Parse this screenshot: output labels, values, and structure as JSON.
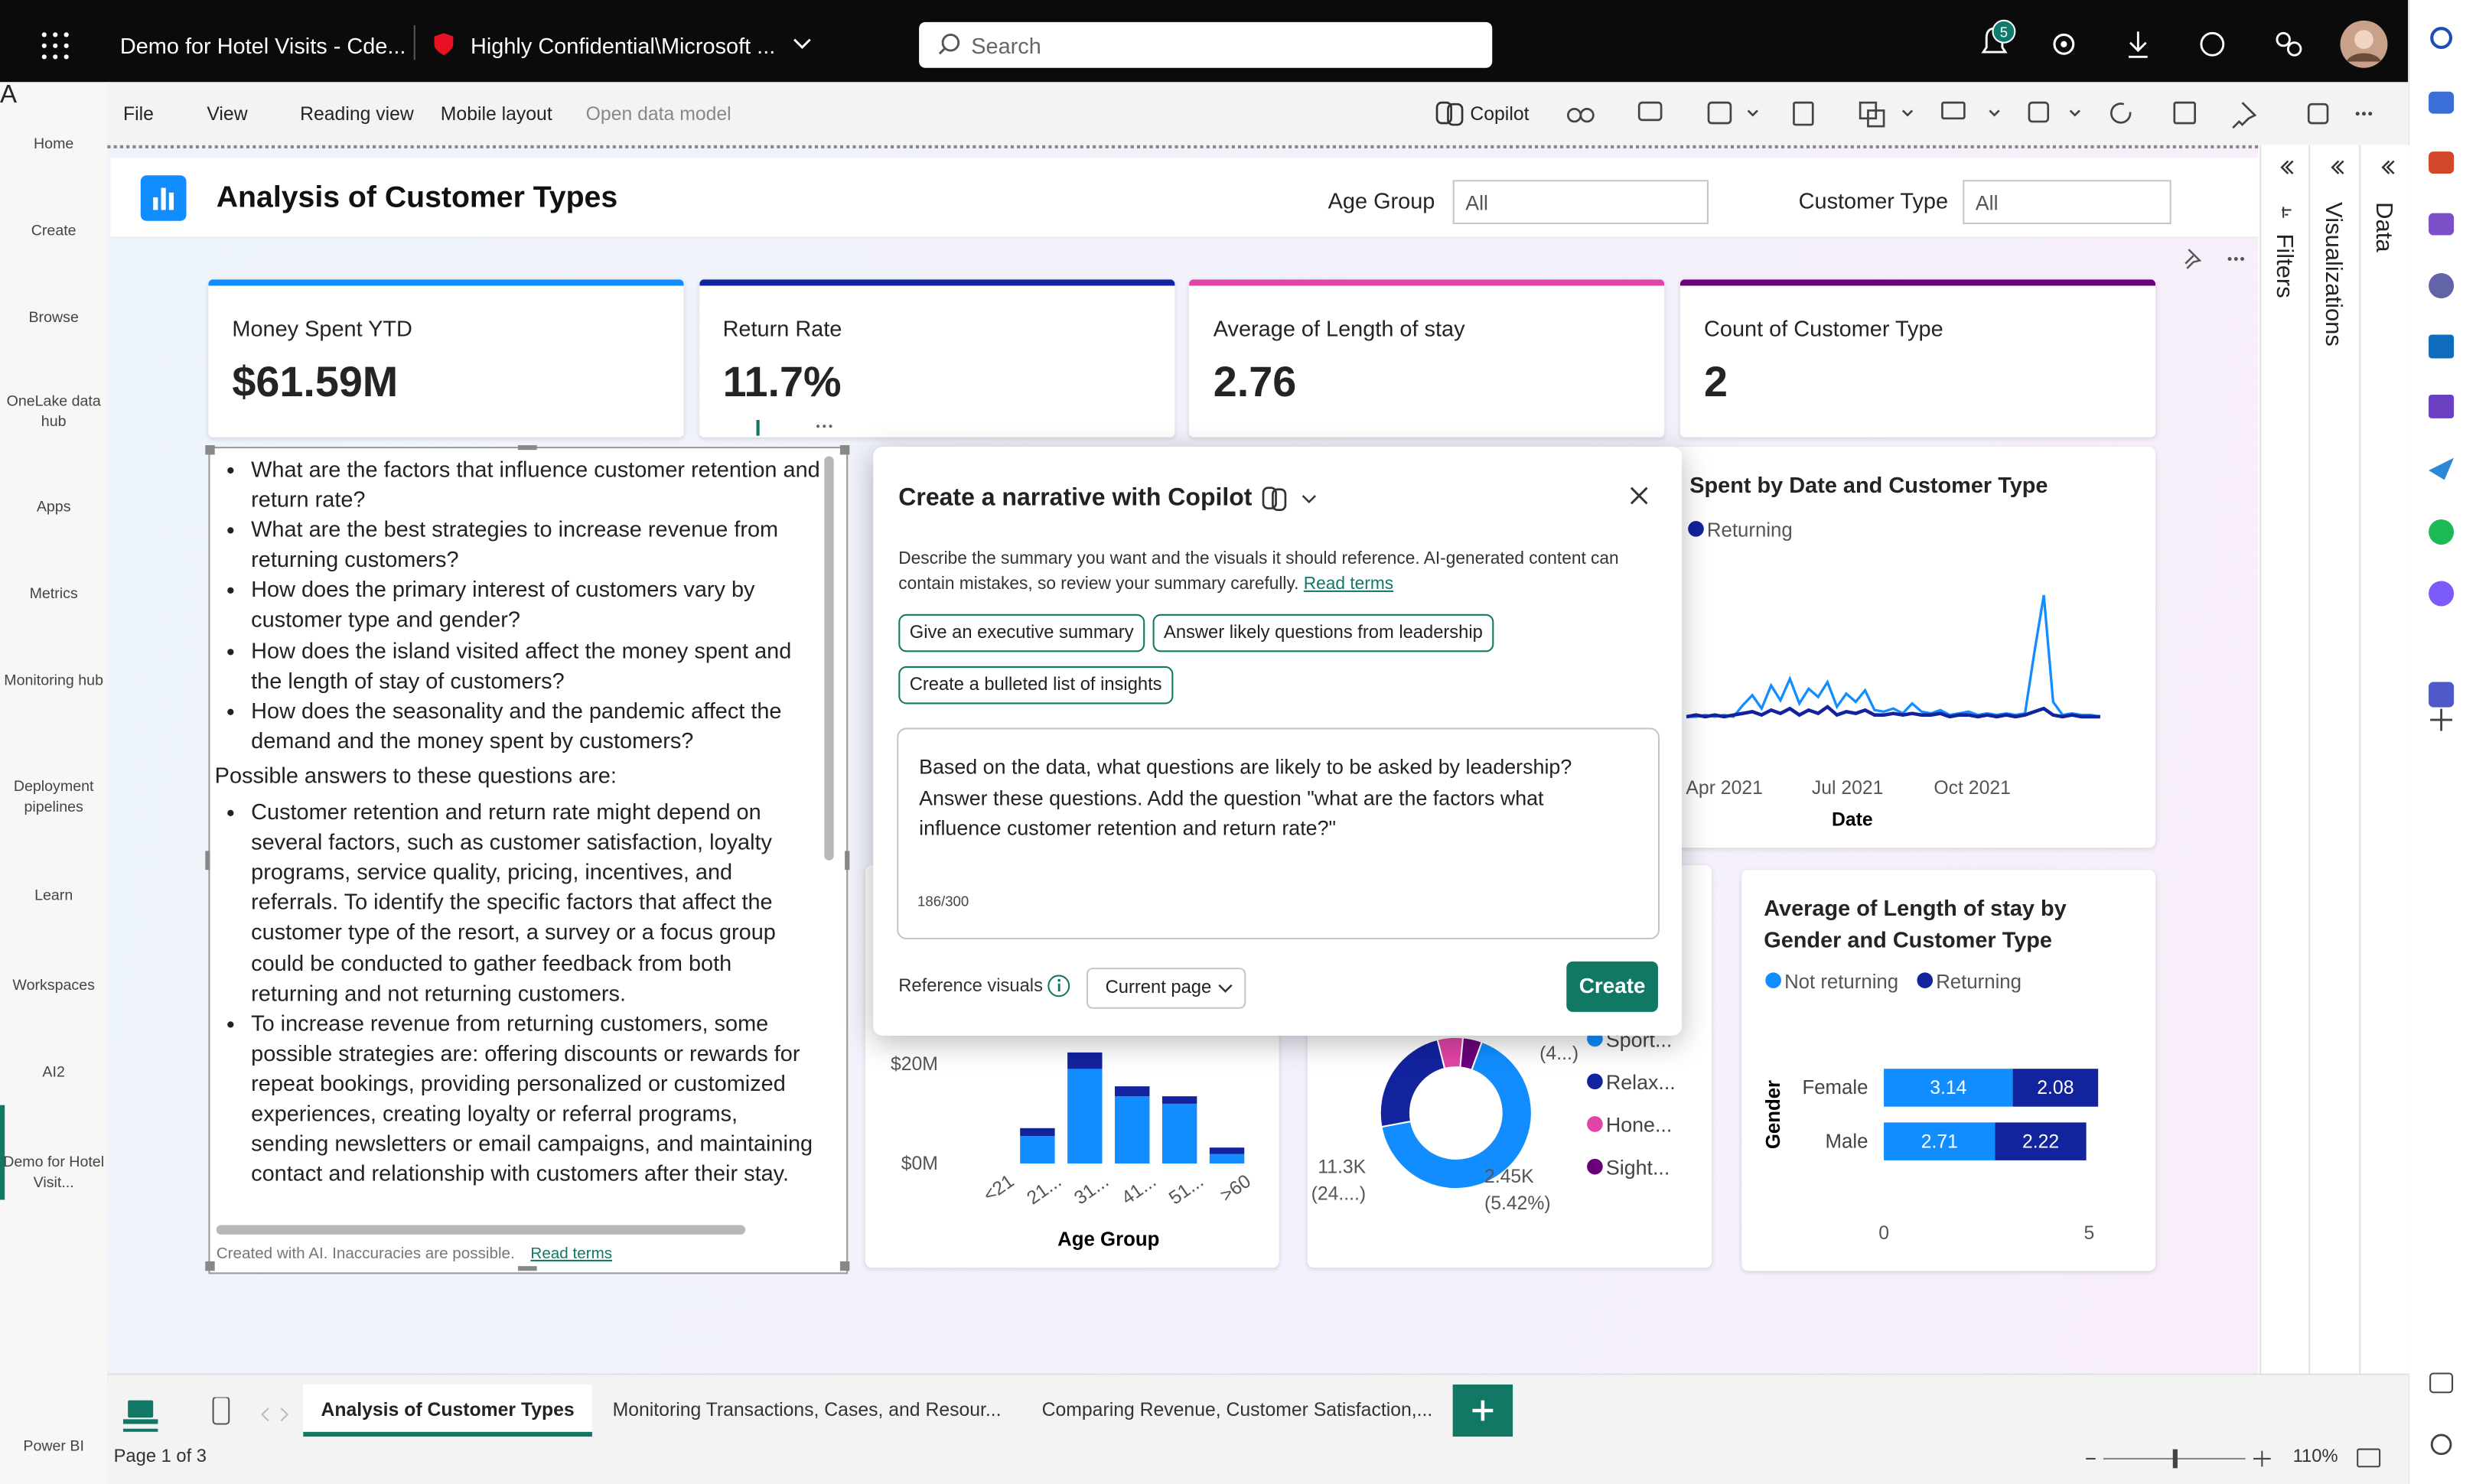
{
  "topbar": {
    "app_title": "Demo for Hotel Visits - Cde...",
    "sensitivity": "Highly Confidential\\Microsoft ...",
    "search_placeholder": "Search",
    "notifications": 5
  },
  "left_nav": [
    "Home",
    "Create",
    "Browse",
    "OneLake data hub",
    "Apps",
    "Metrics",
    "Monitoring hub",
    "Deployment pipelines",
    "Learn",
    "Workspaces",
    "AI2",
    "Demo for Hotel Visit...",
    "Power BI"
  ],
  "workspace_avatar": "A",
  "toolbar": {
    "menus": [
      "File",
      "View",
      "Reading view",
      "Mobile layout",
      "Open data model"
    ],
    "copilot": "Copilot"
  },
  "report": {
    "title": "Analysis of Customer Types",
    "filters": [
      {
        "label": "Age Group",
        "value": "All"
      },
      {
        "label": "Customer Type",
        "value": "All"
      }
    ]
  },
  "cards": [
    {
      "label": "Money Spent YTD",
      "value": "$61.59M",
      "color": "#118dff"
    },
    {
      "label": "Return Rate",
      "value": "11.7%",
      "color": "#12239e"
    },
    {
      "label": "Average of Length of stay",
      "value": "2.76",
      "color": "#e044a7"
    },
    {
      "label": "Count of Customer Type",
      "value": "2",
      "color": "#6b007b"
    }
  ],
  "narrative": {
    "questions": [
      "What are the factors that influence customer retention and return rate?",
      "What are the best strategies to increase revenue from returning customers?",
      "How does the primary interest of customers vary by customer type and gender?",
      "How does the island visited affect the money spent and the length of stay of customers?",
      "How does the seasonality and the pandemic affect the demand and the money spent by customers?"
    ],
    "answers_intro": "Possible answers to these questions are:",
    "answers": [
      "Customer retention and return rate might depend on several factors, such as customer satisfaction, loyalty programs, service quality, pricing, incentives, and referrals. To identify the specific factors that affect the customer type of the resort, a survey or a focus group could be conducted to gather feedback from both returning and not returning customers.",
      "To increase revenue from returning customers, some possible strategies are: offering discounts or rewards for repeat bookings, providing personalized or customized experiences, creating loyalty or referral programs, sending newsletters or email campaigns, and maintaining contact and relationship with customers after their stay."
    ],
    "footer": "Created with AI. Inaccuracies are possible.",
    "footer_link": "Read terms"
  },
  "copilot_dialog": {
    "title": "Create a narrative with Copilot",
    "description": "Describe the summary you want and the visuals it should reference. AI-generated content can contain mistakes, so review your summary carefully.",
    "description_link": "Read terms",
    "suggestions": [
      "Give an executive summary",
      "Answer likely questions from leadership",
      "Create a bulleted list of insights"
    ],
    "prompt": "Based on the data, what questions are likely to be asked by leadership? Answer these questions. Add the question \"what are the factors what influence customer retention and return rate?\"",
    "counter": "186/300",
    "reference_label": "Reference visuals",
    "reference_value": "Current page",
    "create": "Create"
  },
  "line_chart": {
    "type": "line",
    "title": "Spent by Date and Customer Type",
    "x_title": "Date",
    "x_labels": [
      "Apr 2021",
      "Jul 2021",
      "Oct 2021"
    ],
    "series": [
      {
        "color": "#118dff",
        "values": [
          1,
          1,
          2,
          1,
          2,
          1,
          8,
          14,
          6,
          20,
          11,
          24,
          9,
          18,
          13,
          22,
          7,
          15,
          10,
          17,
          5,
          4,
          6,
          3,
          9,
          4,
          3,
          5,
          2,
          3,
          4,
          2,
          3,
          2,
          3,
          2,
          3,
          40,
          75,
          10,
          2,
          3,
          2,
          2,
          1
        ]
      },
      {
        "name": "Returning",
        "color": "#12239e",
        "values": [
          1,
          2,
          1,
          2,
          1,
          2,
          3,
          4,
          2,
          5,
          3,
          6,
          2,
          5,
          3,
          7,
          2,
          4,
          3,
          5,
          2,
          2,
          3,
          2,
          3,
          2,
          2,
          3,
          1,
          2,
          2,
          1,
          2,
          1,
          2,
          1,
          2,
          4,
          6,
          2,
          1,
          2,
          1,
          1,
          1
        ]
      }
    ]
  },
  "column_chart": {
    "type": "bar",
    "x_title": "Age Group",
    "categories": [
      "<21",
      "21...",
      "31...",
      "41...",
      "51...",
      ">60"
    ],
    "ylim": [
      0,
      26000000
    ],
    "yticks": [
      {
        "value": 0,
        "label": "$0M"
      },
      {
        "value": 20000000,
        "label": "$20M"
      }
    ],
    "series": [
      {
        "color": "#118dff",
        "values": [
          0,
          5500000,
          19000000,
          13500000,
          12000000,
          1900000
        ]
      },
      {
        "color": "#12239e",
        "values": [
          0,
          1600000,
          3300000,
          2000000,
          1500000,
          1300000
        ]
      }
    ]
  },
  "donut_chart": {
    "type": "pie",
    "segments": [
      {
        "name": "Sport...",
        "color": "#118dff",
        "value": 66.5
      },
      {
        "name": "Relax...",
        "color": "#12239e",
        "value": 24
      },
      {
        "name": "Hone...",
        "color": "#e044a7",
        "value": 5.42
      },
      {
        "name": "Sight...",
        "color": "#6b007b",
        "value": 4.08
      }
    ],
    "data_labels": [
      {
        "amount": "11.3K",
        "share": "(24....)"
      },
      {
        "amount": "2.45K",
        "share": "(5.42%)"
      },
      {
        "share": "(4...)"
      }
    ]
  },
  "bar_chart": {
    "type": "bar",
    "orientation": "horizontal",
    "title": "Average of Length of stay by Gender and Customer Type",
    "y_title": "Gender",
    "categories": [
      "Female",
      "Male"
    ],
    "xlim": [
      0,
      5
    ],
    "xticks": [
      0,
      5
    ],
    "series": [
      {
        "name": "Not returning",
        "color": "#118dff",
        "values": [
          3.14,
          2.71
        ]
      },
      {
        "name": "Returning",
        "color": "#12239e",
        "values": [
          2.08,
          2.22
        ]
      }
    ]
  },
  "panes": [
    "Filters",
    "Visualizations",
    "Data"
  ],
  "tabs": [
    "Analysis of Customer Types",
    "Monitoring Transactions, Cases, and Resour...",
    "Comparing Revenue, Customer Satisfaction,..."
  ],
  "status": {
    "page": "Page 1 of 3",
    "zoom": "110%"
  }
}
